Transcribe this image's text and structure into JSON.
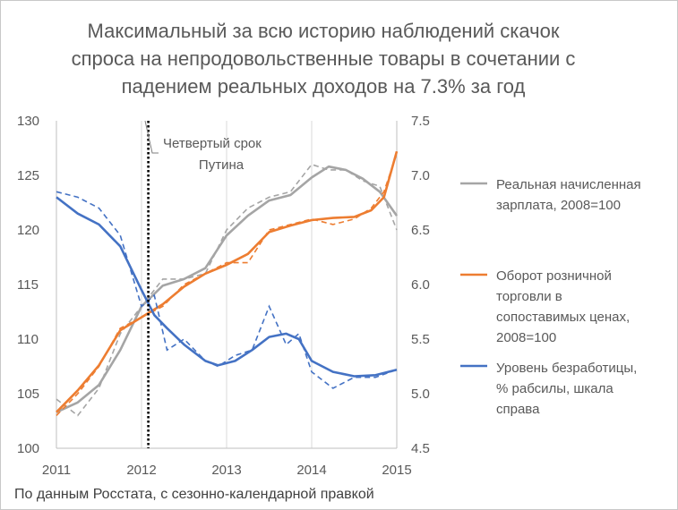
{
  "title_lines": [
    "Максимальный за всю историю наблюдений скачок",
    "спроса на непродовольственные товары в сочетании с",
    "падением реальных доходов на 7.3% за год"
  ],
  "source_note": "По данным Росстата, с сезонно-календарной правкой",
  "colors": {
    "wage": "#a5a5a5",
    "retail": "#ed7d31",
    "unemp": "#4472c4",
    "grid": "#d9d9d9",
    "text": "#595959",
    "axis": "#bfbfbf",
    "marker": "#000000"
  },
  "chart_data": {
    "type": "line",
    "x_ticks": [
      "2011",
      "2012",
      "2013",
      "2014",
      "2015"
    ],
    "xlim": [
      2011,
      2015
    ],
    "ylim_left": [
      100,
      130
    ],
    "ylim_right": [
      4.5,
      7.5
    ],
    "y_ticks_left": [
      "100",
      "105",
      "110",
      "115",
      "120",
      "125",
      "130"
    ],
    "y_ticks_right": [
      "4.5",
      "5.0",
      "5.5",
      "6.0",
      "6.5",
      "7.0",
      "7.5"
    ],
    "grid": "vertical",
    "legend_position": "right",
    "annotation": {
      "lines": [
        "Четвертый срок",
        "Путина"
      ],
      "x": 2012.08
    },
    "series": [
      {
        "name": "Реальная начисленная зарплата, 2008=100",
        "axis": "left",
        "color": "#a5a5a5",
        "x": [
          2011.0,
          2011.25,
          2011.5,
          2011.75,
          2012.0,
          2012.25,
          2012.5,
          2012.75,
          2013.0,
          2013.25,
          2013.5,
          2013.75,
          2014.0,
          2014.2,
          2014.4,
          2014.6,
          2014.8,
          2015.0
        ],
        "trend": [
          103.3,
          104.2,
          105.8,
          109.0,
          113.0,
          114.9,
          115.5,
          116.5,
          119.5,
          121.3,
          122.7,
          123.2,
          124.8,
          125.8,
          125.5,
          124.7,
          123.5,
          121.3
        ],
        "raw": [
          104.5,
          103.0,
          105.5,
          110.5,
          113.0,
          115.5,
          115.5,
          116.0,
          120.0,
          122.0,
          123.0,
          123.5,
          126.0,
          125.5,
          125.5,
          124.5,
          124.0,
          120.0
        ]
      },
      {
        "name": "Оборот розничной торговли в сопоставимых ценах, 2008=100",
        "axis": "left",
        "color": "#ed7d31",
        "x": [
          2011.0,
          2011.25,
          2011.5,
          2011.75,
          2012.0,
          2012.25,
          2012.5,
          2012.75,
          2013.0,
          2013.25,
          2013.5,
          2013.75,
          2014.0,
          2014.25,
          2014.5,
          2014.7,
          2014.85,
          2015.0
        ],
        "trend": [
          103.3,
          105.3,
          107.6,
          110.8,
          112.0,
          113.2,
          114.8,
          116.0,
          116.8,
          117.8,
          119.8,
          120.4,
          120.9,
          121.1,
          121.2,
          121.8,
          123.0,
          127.2
        ],
        "raw": [
          103.0,
          105.0,
          107.5,
          111.0,
          112.0,
          113.0,
          115.0,
          116.0,
          117.0,
          117.0,
          120.0,
          120.5,
          121.0,
          120.5,
          121.0,
          122.0,
          123.5,
          127.0
        ]
      },
      {
        "name": "Уровень безработицы, % рабсилы, шкала справа",
        "axis": "right",
        "color": "#4472c4",
        "x": [
          2011.0,
          2011.25,
          2011.5,
          2011.75,
          2012.0,
          2012.15,
          2012.3,
          2012.5,
          2012.75,
          2012.9,
          2013.1,
          2013.3,
          2013.5,
          2013.7,
          2013.85,
          2014.0,
          2014.25,
          2014.5,
          2014.75,
          2015.0
        ],
        "trend": [
          6.8,
          6.65,
          6.55,
          6.35,
          5.95,
          5.72,
          5.6,
          5.45,
          5.3,
          5.26,
          5.3,
          5.4,
          5.52,
          5.55,
          5.5,
          5.3,
          5.2,
          5.16,
          5.17,
          5.22
        ],
        "raw": [
          6.85,
          6.8,
          6.7,
          6.45,
          5.8,
          5.9,
          5.4,
          5.5,
          5.3,
          5.25,
          5.35,
          5.4,
          5.8,
          5.45,
          5.55,
          5.2,
          5.05,
          5.15,
          5.15,
          5.22
        ]
      }
    ]
  }
}
